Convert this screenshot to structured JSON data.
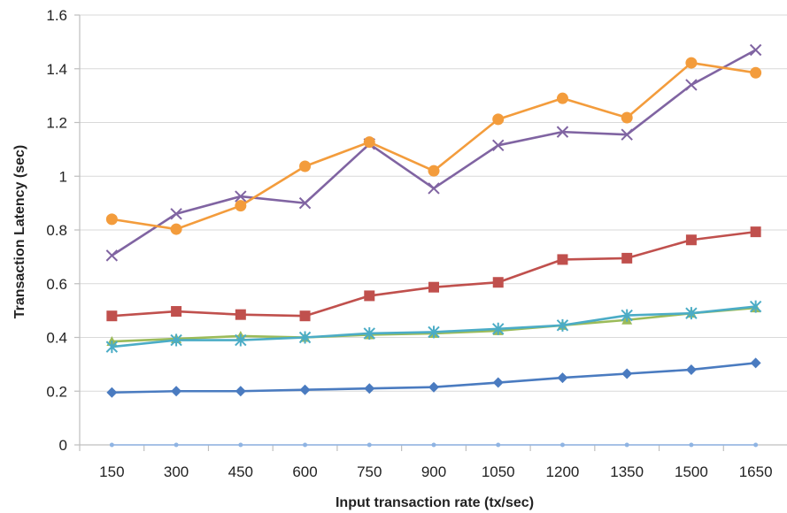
{
  "chart_data": {
    "type": "line",
    "title": "",
    "xlabel": "Input transaction rate (tx/sec)",
    "ylabel": "Transaction Latency (sec)",
    "categories": [
      "150",
      "300",
      "450",
      "600",
      "750",
      "900",
      "1050",
      "1200",
      "1350",
      "1500",
      "1650"
    ],
    "ylim": [
      0,
      1.6
    ],
    "yticks": [
      "0",
      "0.2",
      "0.4",
      "0.6",
      "0.8",
      "1",
      "1.2",
      "1.4",
      "1.6"
    ],
    "grid": true,
    "legend": "none",
    "series": [
      {
        "color": "#4a7bc0",
        "marker": "diamond",
        "values": [
          0.195,
          0.2,
          0.2,
          0.205,
          0.21,
          0.215,
          0.232,
          0.25,
          0.265,
          0.28,
          0.305
        ]
      },
      {
        "color": "#c0504d",
        "marker": "square",
        "values": [
          0.48,
          0.497,
          0.485,
          0.48,
          0.555,
          0.587,
          0.605,
          0.69,
          0.695,
          0.763,
          0.793
        ]
      },
      {
        "color": "#9bbb59",
        "marker": "triangle",
        "values": [
          0.385,
          0.395,
          0.405,
          0.4,
          0.41,
          0.415,
          0.425,
          0.445,
          0.465,
          0.49,
          0.51
        ]
      },
      {
        "color": "#4bacc6",
        "marker": "star",
        "values": [
          0.365,
          0.39,
          0.39,
          0.4,
          0.415,
          0.42,
          0.432,
          0.445,
          0.482,
          0.49,
          0.515
        ]
      },
      {
        "color": "#8064a2",
        "marker": "x",
        "values": [
          0.705,
          0.86,
          0.925,
          0.9,
          1.12,
          0.955,
          1.115,
          1.165,
          1.155,
          1.34,
          1.47
        ]
      },
      {
        "color": "#f39c3c",
        "marker": "circle",
        "values": [
          0.84,
          0.803,
          0.89,
          1.037,
          1.127,
          1.02,
          1.212,
          1.29,
          1.218,
          1.422,
          1.385
        ]
      },
      {
        "color": "#8fb4e3",
        "marker": "dot",
        "values": [
          0,
          0,
          0,
          0,
          0,
          0,
          0,
          0,
          0,
          0,
          0
        ]
      }
    ]
  }
}
